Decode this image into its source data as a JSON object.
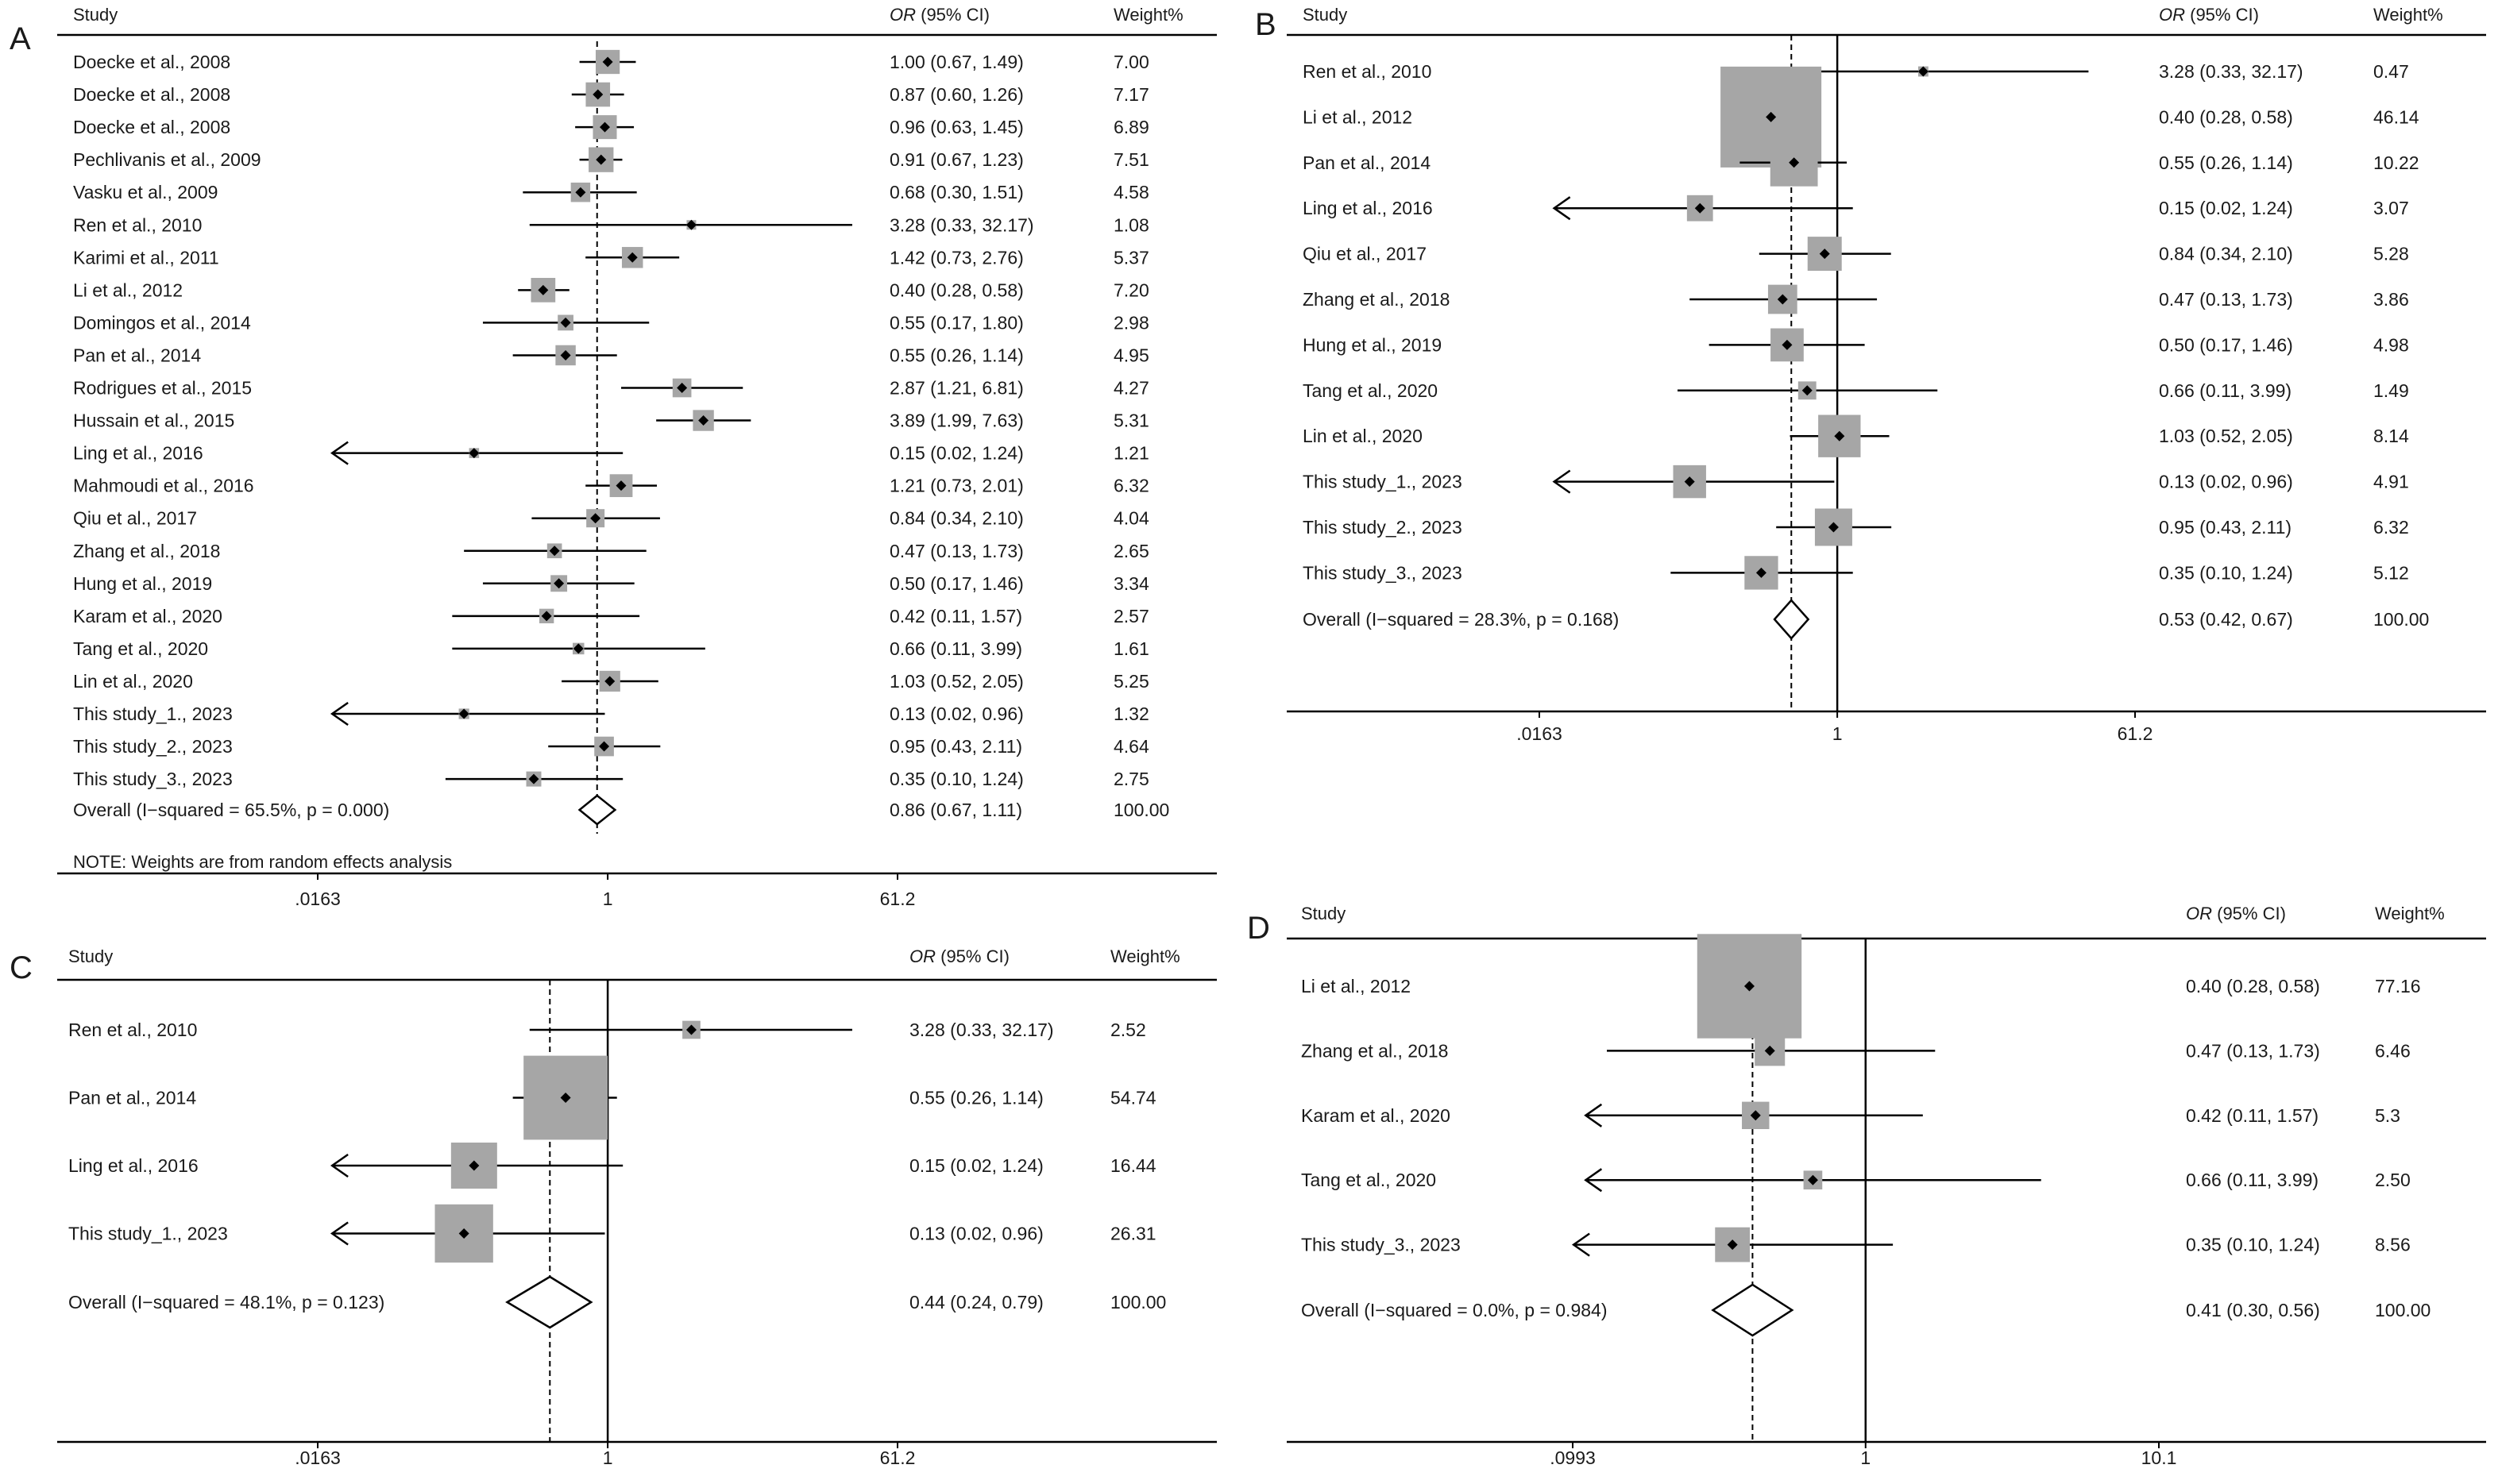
{
  "chart_data": [
    {
      "panel": "A",
      "type": "forest",
      "columns": {
        "study": "Study",
        "or": "OR (95% CI)",
        "or_italic": "OR",
        "or_rest": " (95% CI)",
        "weight": "Weight%"
      },
      "x_ticks": [
        ".0163",
        "1",
        "61.2"
      ],
      "x_tick_values": [
        0.0163,
        1,
        61.2
      ],
      "xlim": [
        0.0163,
        61.2
      ],
      "scale": "log",
      "pooled_line": 0.86,
      "note": "NOTE: Weights are from random effects analysis",
      "studies": [
        {
          "name": "Doecke et al., 2008",
          "or": 1.0,
          "lo": 0.67,
          "hi": 1.49,
          "ci": "1.00 (0.67, 1.49)",
          "weight": "7.00"
        },
        {
          "name": "Doecke et al., 2008",
          "or": 0.87,
          "lo": 0.6,
          "hi": 1.26,
          "ci": "0.87 (0.60, 1.26)",
          "weight": "7.17"
        },
        {
          "name": "Doecke et al., 2008",
          "or": 0.96,
          "lo": 0.63,
          "hi": 1.45,
          "ci": "0.96 (0.63, 1.45)",
          "weight": "6.89"
        },
        {
          "name": "Pechlivanis et al., 2009",
          "or": 0.91,
          "lo": 0.67,
          "hi": 1.23,
          "ci": "0.91 (0.67, 1.23)",
          "weight": "7.51"
        },
        {
          "name": "Vasku et al., 2009",
          "or": 0.68,
          "lo": 0.3,
          "hi": 1.51,
          "ci": "0.68 (0.30, 1.51)",
          "weight": "4.58"
        },
        {
          "name": "Ren et al., 2010",
          "or": 3.28,
          "lo": 0.33,
          "hi": 32.17,
          "ci": "3.28 (0.33, 32.17)",
          "weight": "1.08"
        },
        {
          "name": "Karimi et al., 2011",
          "or": 1.42,
          "lo": 0.73,
          "hi": 2.76,
          "ci": "1.42 (0.73, 2.76)",
          "weight": "5.37"
        },
        {
          "name": "Li et al., 2012",
          "or": 0.4,
          "lo": 0.28,
          "hi": 0.58,
          "ci": "0.40 (0.28, 0.58)",
          "weight": "7.20"
        },
        {
          "name": "Domingos et al., 2014",
          "or": 0.55,
          "lo": 0.17,
          "hi": 1.8,
          "ci": "0.55 (0.17, 1.80)",
          "weight": "2.98"
        },
        {
          "name": "Pan et al., 2014",
          "or": 0.55,
          "lo": 0.26,
          "hi": 1.14,
          "ci": "0.55 (0.26, 1.14)",
          "weight": "4.95"
        },
        {
          "name": "Rodrigues et al., 2015",
          "or": 2.87,
          "lo": 1.21,
          "hi": 6.81,
          "ci": "2.87 (1.21, 6.81)",
          "weight": "4.27"
        },
        {
          "name": "Hussain et al., 2015",
          "or": 3.89,
          "lo": 1.99,
          "hi": 7.63,
          "ci": "3.89 (1.99, 7.63)",
          "weight": "5.31"
        },
        {
          "name": "Ling et al., 2016",
          "or": 0.15,
          "lo": 0.02,
          "hi": 1.24,
          "ci": "0.15 (0.02, 1.24)",
          "weight": "1.21"
        },
        {
          "name": "Mahmoudi et al., 2016",
          "or": 1.21,
          "lo": 0.73,
          "hi": 2.01,
          "ci": "1.21 (0.73, 2.01)",
          "weight": "6.32"
        },
        {
          "name": "Qiu et al., 2017",
          "or": 0.84,
          "lo": 0.34,
          "hi": 2.1,
          "ci": "0.84 (0.34, 2.10)",
          "weight": "4.04"
        },
        {
          "name": "Zhang et al., 2018",
          "or": 0.47,
          "lo": 0.13,
          "hi": 1.73,
          "ci": "0.47 (0.13, 1.73)",
          "weight": "2.65"
        },
        {
          "name": "Hung et al., 2019",
          "or": 0.5,
          "lo": 0.17,
          "hi": 1.46,
          "ci": "0.50 (0.17, 1.46)",
          "weight": "3.34"
        },
        {
          "name": "Karam et al., 2020",
          "or": 0.42,
          "lo": 0.11,
          "hi": 1.57,
          "ci": "0.42 (0.11, 1.57)",
          "weight": "2.57"
        },
        {
          "name": "Tang et al., 2020",
          "or": 0.66,
          "lo": 0.11,
          "hi": 3.99,
          "ci": "0.66 (0.11, 3.99)",
          "weight": "1.61"
        },
        {
          "name": "Lin et al., 2020",
          "or": 1.03,
          "lo": 0.52,
          "hi": 2.05,
          "ci": "1.03 (0.52, 2.05)",
          "weight": "5.25"
        },
        {
          "name": "This study_1., 2023",
          "or": 0.13,
          "lo": 0.02,
          "hi": 0.96,
          "ci": "0.13 (0.02, 0.96)",
          "weight": "1.32"
        },
        {
          "name": "This study_2., 2023",
          "or": 0.95,
          "lo": 0.43,
          "hi": 2.11,
          "ci": "0.95 (0.43, 2.11)",
          "weight": "4.64"
        },
        {
          "name": "This study_3., 2023",
          "or": 0.35,
          "lo": 0.1,
          "hi": 1.24,
          "ci": "0.35 (0.10, 1.24)",
          "weight": "2.75"
        }
      ],
      "overall": {
        "label": "Overall  (I−squared = 65.5%, p = 0.000)",
        "or": 0.86,
        "lo": 0.67,
        "hi": 1.11,
        "ci": "0.86 (0.67, 1.11)",
        "weight": "100.00"
      }
    },
    {
      "panel": "B",
      "type": "forest",
      "columns": {
        "study": "Study",
        "or": "OR (95% CI)",
        "or_italic": "OR",
        "or_rest": " (95% CI)",
        "weight": "Weight%"
      },
      "x_ticks": [
        ".0163",
        "1",
        "61.2"
      ],
      "x_tick_values": [
        0.0163,
        1,
        61.2
      ],
      "xlim": [
        0.0163,
        61.2
      ],
      "scale": "log",
      "pooled_line": 0.53,
      "studies": [
        {
          "name": "Ren et al., 2010",
          "or": 3.28,
          "lo": 0.33,
          "hi": 32.17,
          "ci": "3.28 (0.33, 32.17)",
          "weight": "0.47"
        },
        {
          "name": "Li et al., 2012",
          "or": 0.4,
          "lo": 0.28,
          "hi": 0.58,
          "ci": "0.40 (0.28, 0.58)",
          "weight": "46.14"
        },
        {
          "name": "Pan et al., 2014",
          "or": 0.55,
          "lo": 0.26,
          "hi": 1.14,
          "ci": "0.55 (0.26, 1.14)",
          "weight": "10.22"
        },
        {
          "name": "Ling et al., 2016",
          "or": 0.15,
          "lo": 0.02,
          "hi": 1.24,
          "ci": "0.15 (0.02, 1.24)",
          "weight": "3.07"
        },
        {
          "name": "Qiu et al., 2017",
          "or": 0.84,
          "lo": 0.34,
          "hi": 2.1,
          "ci": "0.84 (0.34, 2.10)",
          "weight": "5.28"
        },
        {
          "name": "Zhang et al., 2018",
          "or": 0.47,
          "lo": 0.13,
          "hi": 1.73,
          "ci": "0.47 (0.13, 1.73)",
          "weight": "3.86"
        },
        {
          "name": "Hung et al., 2019",
          "or": 0.5,
          "lo": 0.17,
          "hi": 1.46,
          "ci": "0.50 (0.17, 1.46)",
          "weight": "4.98"
        },
        {
          "name": "Tang et al., 2020",
          "or": 0.66,
          "lo": 0.11,
          "hi": 3.99,
          "ci": "0.66 (0.11, 3.99)",
          "weight": "1.49"
        },
        {
          "name": "Lin et al., 2020",
          "or": 1.03,
          "lo": 0.52,
          "hi": 2.05,
          "ci": "1.03 (0.52, 2.05)",
          "weight": "8.14"
        },
        {
          "name": "This study_1., 2023",
          "or": 0.13,
          "lo": 0.02,
          "hi": 0.96,
          "ci": "0.13 (0.02, 0.96)",
          "weight": "4.91"
        },
        {
          "name": "This study_2., 2023",
          "or": 0.95,
          "lo": 0.43,
          "hi": 2.11,
          "ci": "0.95 (0.43, 2.11)",
          "weight": "6.32"
        },
        {
          "name": "This study_3., 2023",
          "or": 0.35,
          "lo": 0.1,
          "hi": 1.24,
          "ci": "0.35 (0.10, 1.24)",
          "weight": "5.12"
        }
      ],
      "overall": {
        "label": "Overall  (I−squared = 28.3%, p = 0.168)",
        "or": 0.53,
        "lo": 0.42,
        "hi": 0.67,
        "ci": "0.53 (0.42, 0.67)",
        "weight": "100.00"
      }
    },
    {
      "panel": "C",
      "type": "forest",
      "columns": {
        "study": "Study",
        "or": "OR (95% CI)",
        "or_italic": "OR",
        "or_rest": " (95% CI)",
        "weight": "Weight%"
      },
      "x_ticks": [
        ".0163",
        "1",
        "61.2"
      ],
      "x_tick_values": [
        0.0163,
        1,
        61.2
      ],
      "xlim": [
        0.0163,
        61.2
      ],
      "scale": "log",
      "pooled_line": 0.44,
      "studies": [
        {
          "name": "Ren et al., 2010",
          "or": 3.28,
          "lo": 0.33,
          "hi": 32.17,
          "ci": "3.28 (0.33, 32.17)",
          "weight": "2.52"
        },
        {
          "name": "Pan et al., 2014",
          "or": 0.55,
          "lo": 0.26,
          "hi": 1.14,
          "ci": "0.55 (0.26, 1.14)",
          "weight": "54.74"
        },
        {
          "name": "Ling et al., 2016",
          "or": 0.15,
          "lo": 0.02,
          "hi": 1.24,
          "ci": "0.15 (0.02, 1.24)",
          "weight": "16.44"
        },
        {
          "name": "This study_1., 2023",
          "or": 0.13,
          "lo": 0.02,
          "hi": 0.96,
          "ci": "0.13 (0.02, 0.96)",
          "weight": "26.31"
        }
      ],
      "overall": {
        "label": "Overall  (I−squared = 48.1%, p = 0.123)",
        "or": 0.44,
        "lo": 0.24,
        "hi": 0.79,
        "ci": "0.44 (0.24, 0.79)",
        "weight": "100.00"
      }
    },
    {
      "panel": "D",
      "type": "forest",
      "columns": {
        "study": "Study",
        "or": "OR (95% CI)",
        "or_italic": "OR",
        "or_rest": " (95% CI)",
        "weight": "Weight%"
      },
      "x_ticks": [
        ".0993",
        "1",
        "10.1"
      ],
      "x_tick_values": [
        0.0993,
        1,
        10.1
      ],
      "xlim": [
        0.0993,
        10.1
      ],
      "scale": "log",
      "pooled_line": 0.41,
      "studies": [
        {
          "name": "Li et al., 2012",
          "or": 0.4,
          "lo": 0.28,
          "hi": 0.58,
          "ci": "0.40 (0.28, 0.58)",
          "weight": "77.16"
        },
        {
          "name": "Zhang et al., 2018",
          "or": 0.47,
          "lo": 0.13,
          "hi": 1.73,
          "ci": "0.47 (0.13, 1.73)",
          "weight": "6.46"
        },
        {
          "name": "Karam et al., 2020",
          "or": 0.42,
          "lo": 0.11,
          "hi": 1.57,
          "ci": "0.42 (0.11, 1.57)",
          "weight": "5.3"
        },
        {
          "name": "Tang et al., 2020",
          "or": 0.66,
          "lo": 0.11,
          "hi": 3.99,
          "ci": "0.66 (0.11, 3.99)",
          "weight": "2.50"
        },
        {
          "name": "This study_3., 2023",
          "or": 0.35,
          "lo": 0.1,
          "hi": 1.24,
          "ci": "0.35 (0.10, 1.24)",
          "weight": "8.56"
        }
      ],
      "overall": {
        "label": "Overall  (I−squared = 0.0%, p = 0.984)",
        "or": 0.41,
        "lo": 0.3,
        "hi": 0.56,
        "ci": "0.41 (0.30, 0.56)",
        "weight": "100.00"
      }
    }
  ]
}
